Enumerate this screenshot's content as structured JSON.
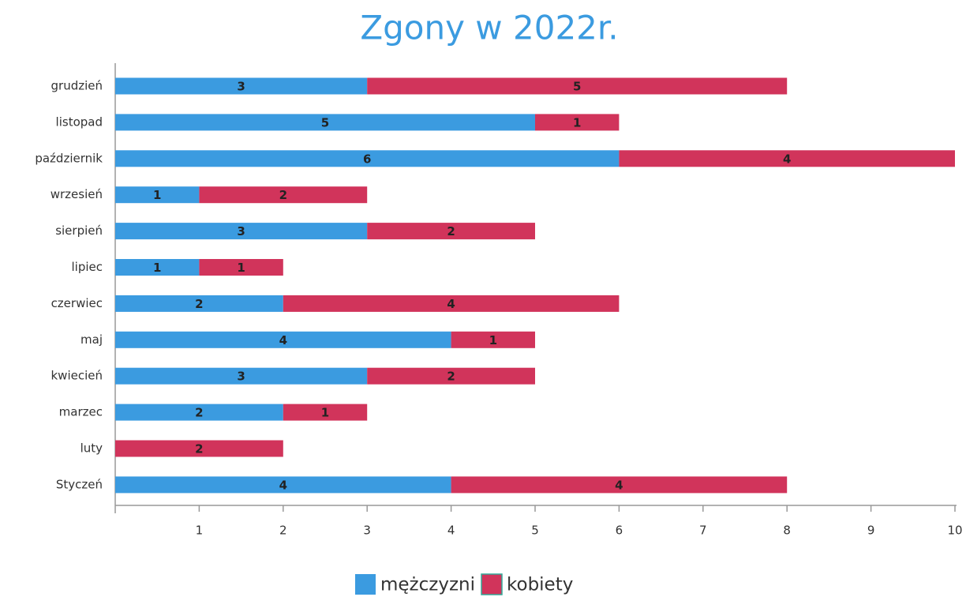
{
  "chart_data": {
    "type": "stacked-barh",
    "title": "Zgony w 2022r.",
    "categories": [
      "grudzień",
      "listopad",
      "październik",
      "wrzesień",
      "sierpień",
      "lipiec",
      "czerwiec",
      "maj",
      "kwiecień",
      "marzec",
      "luty",
      "Styczeń"
    ],
    "series": [
      {
        "name": "mężczyzni",
        "color": "#3b9be0",
        "values": [
          3,
          5,
          6,
          1,
          3,
          1,
          2,
          4,
          3,
          2,
          0,
          4
        ]
      },
      {
        "name": "kobiety",
        "color": "#d1345b",
        "values": [
          5,
          1,
          4,
          2,
          2,
          1,
          4,
          1,
          2,
          1,
          2,
          4
        ]
      }
    ],
    "xlim": [
      0,
      10
    ],
    "xticks": [
      1,
      2,
      3,
      4,
      5,
      6,
      7,
      8,
      9,
      10
    ],
    "legend": "bottom"
  }
}
